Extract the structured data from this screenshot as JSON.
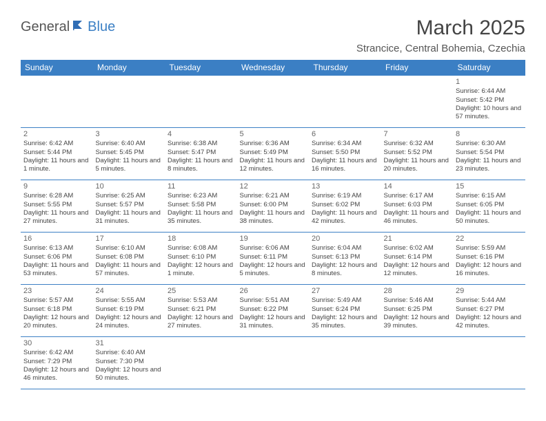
{
  "brand": {
    "part1": "General",
    "part2": "Blue"
  },
  "title": "March 2025",
  "location": "Strancice, Central Bohemia, Czechia",
  "weekdays": [
    "Sunday",
    "Monday",
    "Tuesday",
    "Wednesday",
    "Thursday",
    "Friday",
    "Saturday"
  ],
  "colors": {
    "header_bg": "#3b7fc4",
    "header_text": "#ffffff",
    "border": "#3b7fc4",
    "body_text": "#444444"
  },
  "firstWeekday": 6,
  "days": [
    {
      "n": 1,
      "sunrise": "6:44 AM",
      "sunset": "5:42 PM",
      "daylight": "10 hours and 57 minutes."
    },
    {
      "n": 2,
      "sunrise": "6:42 AM",
      "sunset": "5:44 PM",
      "daylight": "11 hours and 1 minute."
    },
    {
      "n": 3,
      "sunrise": "6:40 AM",
      "sunset": "5:45 PM",
      "daylight": "11 hours and 5 minutes."
    },
    {
      "n": 4,
      "sunrise": "6:38 AM",
      "sunset": "5:47 PM",
      "daylight": "11 hours and 8 minutes."
    },
    {
      "n": 5,
      "sunrise": "6:36 AM",
      "sunset": "5:49 PM",
      "daylight": "11 hours and 12 minutes."
    },
    {
      "n": 6,
      "sunrise": "6:34 AM",
      "sunset": "5:50 PM",
      "daylight": "11 hours and 16 minutes."
    },
    {
      "n": 7,
      "sunrise": "6:32 AM",
      "sunset": "5:52 PM",
      "daylight": "11 hours and 20 minutes."
    },
    {
      "n": 8,
      "sunrise": "6:30 AM",
      "sunset": "5:54 PM",
      "daylight": "11 hours and 23 minutes."
    },
    {
      "n": 9,
      "sunrise": "6:28 AM",
      "sunset": "5:55 PM",
      "daylight": "11 hours and 27 minutes."
    },
    {
      "n": 10,
      "sunrise": "6:25 AM",
      "sunset": "5:57 PM",
      "daylight": "11 hours and 31 minutes."
    },
    {
      "n": 11,
      "sunrise": "6:23 AM",
      "sunset": "5:58 PM",
      "daylight": "11 hours and 35 minutes."
    },
    {
      "n": 12,
      "sunrise": "6:21 AM",
      "sunset": "6:00 PM",
      "daylight": "11 hours and 38 minutes."
    },
    {
      "n": 13,
      "sunrise": "6:19 AM",
      "sunset": "6:02 PM",
      "daylight": "11 hours and 42 minutes."
    },
    {
      "n": 14,
      "sunrise": "6:17 AM",
      "sunset": "6:03 PM",
      "daylight": "11 hours and 46 minutes."
    },
    {
      "n": 15,
      "sunrise": "6:15 AM",
      "sunset": "6:05 PM",
      "daylight": "11 hours and 50 minutes."
    },
    {
      "n": 16,
      "sunrise": "6:13 AM",
      "sunset": "6:06 PM",
      "daylight": "11 hours and 53 minutes."
    },
    {
      "n": 17,
      "sunrise": "6:10 AM",
      "sunset": "6:08 PM",
      "daylight": "11 hours and 57 minutes."
    },
    {
      "n": 18,
      "sunrise": "6:08 AM",
      "sunset": "6:10 PM",
      "daylight": "12 hours and 1 minute."
    },
    {
      "n": 19,
      "sunrise": "6:06 AM",
      "sunset": "6:11 PM",
      "daylight": "12 hours and 5 minutes."
    },
    {
      "n": 20,
      "sunrise": "6:04 AM",
      "sunset": "6:13 PM",
      "daylight": "12 hours and 8 minutes."
    },
    {
      "n": 21,
      "sunrise": "6:02 AM",
      "sunset": "6:14 PM",
      "daylight": "12 hours and 12 minutes."
    },
    {
      "n": 22,
      "sunrise": "5:59 AM",
      "sunset": "6:16 PM",
      "daylight": "12 hours and 16 minutes."
    },
    {
      "n": 23,
      "sunrise": "5:57 AM",
      "sunset": "6:18 PM",
      "daylight": "12 hours and 20 minutes."
    },
    {
      "n": 24,
      "sunrise": "5:55 AM",
      "sunset": "6:19 PM",
      "daylight": "12 hours and 24 minutes."
    },
    {
      "n": 25,
      "sunrise": "5:53 AM",
      "sunset": "6:21 PM",
      "daylight": "12 hours and 27 minutes."
    },
    {
      "n": 26,
      "sunrise": "5:51 AM",
      "sunset": "6:22 PM",
      "daylight": "12 hours and 31 minutes."
    },
    {
      "n": 27,
      "sunrise": "5:49 AM",
      "sunset": "6:24 PM",
      "daylight": "12 hours and 35 minutes."
    },
    {
      "n": 28,
      "sunrise": "5:46 AM",
      "sunset": "6:25 PM",
      "daylight": "12 hours and 39 minutes."
    },
    {
      "n": 29,
      "sunrise": "5:44 AM",
      "sunset": "6:27 PM",
      "daylight": "12 hours and 42 minutes."
    },
    {
      "n": 30,
      "sunrise": "6:42 AM",
      "sunset": "7:29 PM",
      "daylight": "12 hours and 46 minutes."
    },
    {
      "n": 31,
      "sunrise": "6:40 AM",
      "sunset": "7:30 PM",
      "daylight": "12 hours and 50 minutes."
    }
  ],
  "labels": {
    "sunrise": "Sunrise:",
    "sunset": "Sunset:",
    "daylight": "Daylight:"
  }
}
